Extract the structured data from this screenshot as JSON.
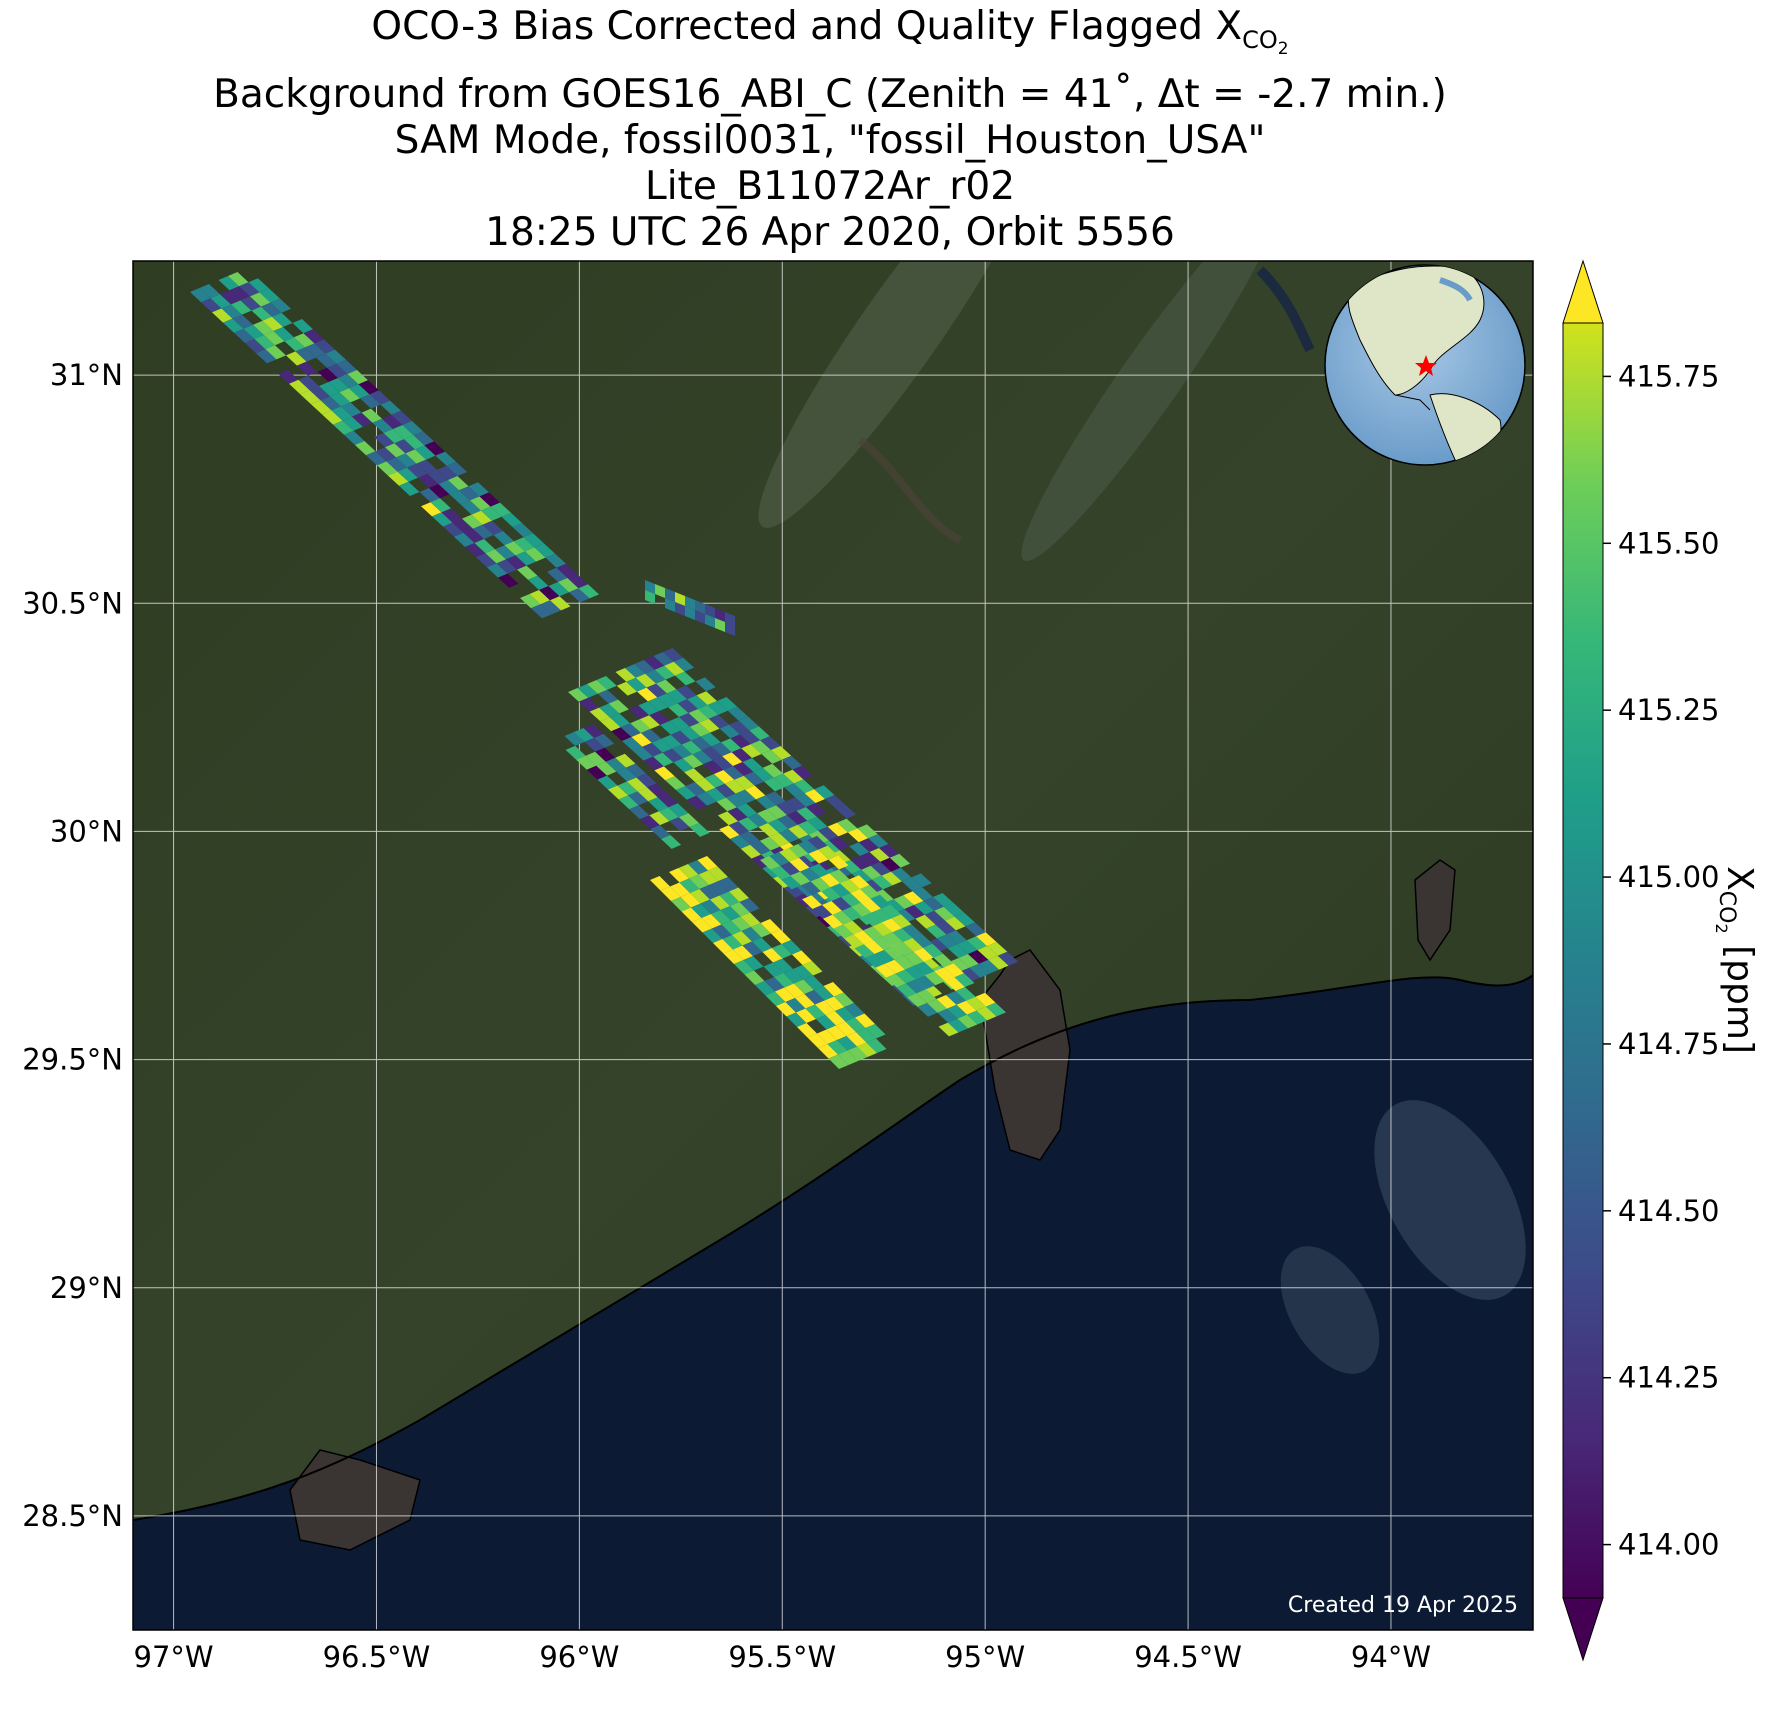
{
  "title": {
    "line1_prefix": "OCO-3 Bias Corrected and Quality Flagged X",
    "line1_sub": "CO",
    "line1_sub2": "2",
    "line2": "Background from GOES16_ABI_C (Zenith = 41˚, Δt = -2.7 min.)",
    "line3": "SAM Mode, fossil0031, \"fossil_Houston_USA\"",
    "line4": "Lite_B11072Ar_r02",
    "line5": "18:25 UTC 26 Apr 2020, Orbit 5556"
  },
  "map": {
    "lon_range": [
      -97.1,
      -93.65
    ],
    "lat_range": [
      28.25,
      31.25
    ],
    "lon_ticks": [
      -97,
      -96.5,
      -96,
      -95.5,
      -95,
      -94.5,
      -94
    ],
    "lon_tick_labels": [
      "97°W",
      "96.5°W",
      "96°W",
      "95.5°W",
      "95°W",
      "94.5°W",
      "94°W"
    ],
    "lat_ticks": [
      28.5,
      29,
      29.5,
      30,
      30.5,
      31
    ],
    "lat_tick_labels": [
      "28.5°N",
      "29°N",
      "29.5°N",
      "30°N",
      "30.5°N",
      "31°N"
    ],
    "credit": "Created 19 Apr 2025",
    "colors": {
      "land": "#2e3b22",
      "water": "#0b1a33",
      "bay": "#3a3433"
    }
  },
  "colorbar": {
    "label_prefix": "X",
    "label_sub": "CO",
    "label_sub2": "2",
    "label_suffix": " [ppm]",
    "vmin": 413.92,
    "vmax": 415.83,
    "ticks": [
      414.0,
      414.25,
      414.5,
      414.75,
      415.0,
      415.25,
      415.5,
      415.75
    ],
    "tick_labels": [
      "414.00",
      "414.25",
      "414.50",
      "414.75",
      "415.00",
      "415.25",
      "415.50",
      "415.75"
    ],
    "extend": "both",
    "colormap": "viridis"
  },
  "inset_globe": {
    "marker": "red-star",
    "marker_color": "#ff0000"
  }
}
